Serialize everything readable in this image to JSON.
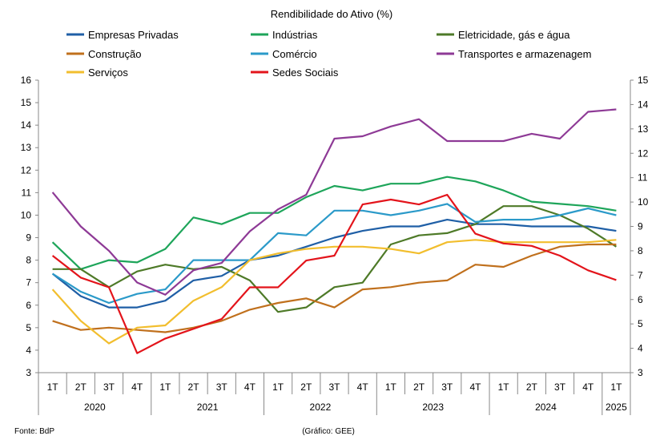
{
  "chart_data": {
    "type": "line",
    "title": "Rendibilidade do Ativo (%)",
    "x_quarters": [
      "1T",
      "2T",
      "3T",
      "4T",
      "1T",
      "2T",
      "3T",
      "4T",
      "1T",
      "2T",
      "3T",
      "4T",
      "1T",
      "2T",
      "3T",
      "4T",
      "1T",
      "2T",
      "3T",
      "4T",
      "1T"
    ],
    "years": [
      {
        "label": "2020",
        "span": 4
      },
      {
        "label": "2021",
        "span": 4
      },
      {
        "label": "2022",
        "span": 4
      },
      {
        "label": "2023",
        "span": 4
      },
      {
        "label": "2024",
        "span": 4
      },
      {
        "label": "2025",
        "span": 1
      }
    ],
    "y_left": {
      "min": 3,
      "max": 16,
      "ticks": [
        "3",
        "4",
        "5",
        "6",
        "7",
        "8",
        "9",
        "10",
        "11",
        "12",
        "13",
        "14",
        "15",
        "16"
      ]
    },
    "y_right": {
      "min": 3,
      "max": 15,
      "ticks": [
        "3",
        "4",
        "5",
        "6",
        "7",
        "8",
        "9",
        "10",
        "11",
        "12",
        "13",
        "14",
        "15"
      ]
    },
    "series": [
      {
        "name": "Empresas Privadas",
        "color": "#1f5fa6",
        "axis": "left",
        "values": [
          7.4,
          6.4,
          5.9,
          5.9,
          6.2,
          7.1,
          7.3,
          8.0,
          8.2,
          8.6,
          9.0,
          9.3,
          9.5,
          9.5,
          9.8,
          9.6,
          9.6,
          9.5,
          9.5,
          9.5,
          9.3
        ]
      },
      {
        "name": "Indústrias",
        "color": "#1ea55a",
        "axis": "left",
        "values": [
          8.8,
          7.6,
          8.0,
          7.9,
          8.5,
          9.9,
          9.6,
          10.1,
          10.1,
          10.8,
          11.3,
          11.1,
          11.4,
          11.4,
          11.7,
          11.5,
          11.1,
          10.6,
          10.5,
          10.4,
          10.2
        ]
      },
      {
        "name": "Eletricidade, gás e água",
        "color": "#4e7a28",
        "axis": "left",
        "values": [
          7.6,
          7.6,
          6.8,
          7.5,
          7.8,
          7.6,
          7.7,
          7.1,
          5.7,
          5.9,
          6.8,
          7.0,
          8.7,
          9.1,
          9.2,
          9.6,
          10.4,
          10.4,
          10.0,
          9.4,
          8.6
        ]
      },
      {
        "name": "Construção",
        "color": "#c0701d",
        "axis": "left",
        "values": [
          5.3,
          4.9,
          5.0,
          4.9,
          4.8,
          5.0,
          5.3,
          5.8,
          6.1,
          6.3,
          5.9,
          6.7,
          6.8,
          7.0,
          7.1,
          7.8,
          7.7,
          8.2,
          8.6,
          8.7,
          8.7
        ]
      },
      {
        "name": "Comércio",
        "color": "#2b9ac9",
        "axis": "left",
        "values": [
          7.4,
          6.6,
          6.1,
          6.5,
          6.7,
          8.0,
          8.0,
          8.0,
          9.2,
          9.1,
          10.2,
          10.2,
          10.0,
          10.2,
          10.5,
          9.7,
          9.8,
          9.8,
          10.0,
          10.3,
          10.0
        ]
      },
      {
        "name": "Transportes e armazenagem",
        "color": "#8e3a96",
        "axis": "right",
        "values": [
          10.4,
          9.0,
          8.0,
          6.7,
          6.2,
          7.2,
          7.5,
          8.8,
          9.7,
          10.3,
          12.6,
          12.7,
          13.1,
          13.4,
          12.5,
          12.5,
          12.5,
          12.8,
          12.6,
          13.7,
          13.8
        ]
      },
      {
        "name": "Serviços",
        "color": "#f2be2e",
        "axis": "left",
        "values": [
          6.7,
          5.3,
          4.3,
          5.0,
          5.1,
          6.2,
          6.8,
          8.0,
          8.3,
          8.5,
          8.6,
          8.6,
          8.5,
          8.3,
          8.8,
          8.9,
          8.8,
          8.8,
          8.8,
          8.8,
          8.9
        ]
      },
      {
        "name": "Sedes Sociais",
        "color": "#e3141b",
        "axis": "right",
        "values": [
          7.8,
          6.9,
          6.5,
          3.8,
          4.4,
          4.8,
          5.2,
          6.5,
          6.5,
          7.6,
          7.8,
          9.9,
          10.1,
          9.9,
          10.3,
          8.7,
          8.3,
          8.2,
          7.8,
          7.2,
          6.8
        ]
      }
    ]
  },
  "footer": {
    "source": "Fonte: BdP",
    "credit": "(Gráfico: GEE)"
  }
}
